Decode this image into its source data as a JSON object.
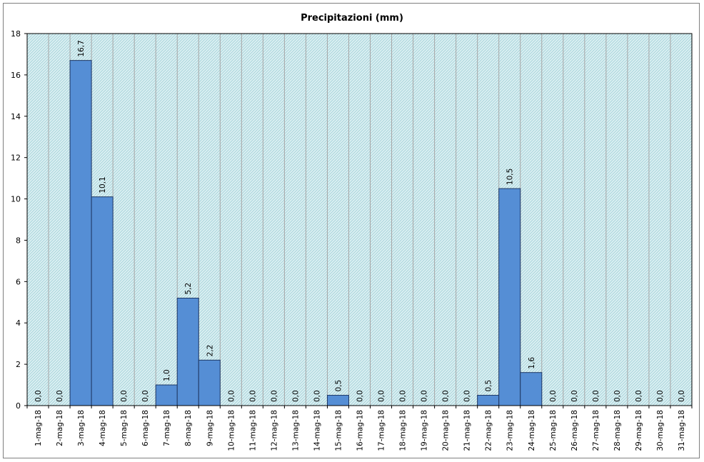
{
  "chart_data": {
    "type": "bar",
    "title": "Precipitazioni (mm)",
    "xlabel": "",
    "ylabel": "",
    "ylim": [
      0,
      18
    ],
    "yticks": [
      "0",
      "2",
      "4",
      "6",
      "8",
      "10",
      "12",
      "14",
      "16",
      "18"
    ],
    "categories": [
      "1-mag-18",
      "2-mag-18",
      "3-mag-18",
      "4-mag-18",
      "5-mag-18",
      "6-mag-18",
      "7-mag-18",
      "8-mag-18",
      "9-mag-18",
      "10-mag-18",
      "11-mag-18",
      "12-mag-18",
      "13-mag-18",
      "14-mag-18",
      "15-mag-18",
      "16-mag-18",
      "17-mag-18",
      "18-mag-18",
      "19-mag-18",
      "20-mag-18",
      "21-mag-18",
      "22-mag-18",
      "23-mag-18",
      "24-mag-18",
      "25-mag-18",
      "26-mag-18",
      "27-mag-18",
      "28-mag-18",
      "29-mag-18",
      "30-mag-18",
      "31-mag-18"
    ],
    "values": [
      0.0,
      0.0,
      16.7,
      10.1,
      0.0,
      0.0,
      1.0,
      5.2,
      2.2,
      0.0,
      0.0,
      0.0,
      0.0,
      0.0,
      0.5,
      0.0,
      0.0,
      0.0,
      0.0,
      0.0,
      0.0,
      0.5,
      10.5,
      1.6,
      0.0,
      0.0,
      0.0,
      0.0,
      0.0,
      0.0,
      0.0
    ],
    "data_labels": [
      "0,0",
      "0,0",
      "16,7",
      "10,1",
      "0,0",
      "0,0",
      "1,0",
      "5,2",
      "2,2",
      "0,0",
      "0,0",
      "0,0",
      "0,0",
      "0,0",
      "0,5",
      "0,0",
      "0,0",
      "0,0",
      "0,0",
      "0,0",
      "0,0",
      "0,5",
      "10,5",
      "1,6",
      "0,0",
      "0,0",
      "0,0",
      "0,0",
      "0,0",
      "0,0",
      "0,0"
    ],
    "grid": {
      "vertical": true,
      "horizontal": false
    },
    "legend": "none",
    "colors": {
      "bar_fill": "#558ed5",
      "bar_stroke": "#1f3864",
      "plot_background": "#dcf0f3",
      "plot_hatch": "#9fcfd6",
      "gridline": "#a6a6a6",
      "axis": "#000000"
    }
  }
}
